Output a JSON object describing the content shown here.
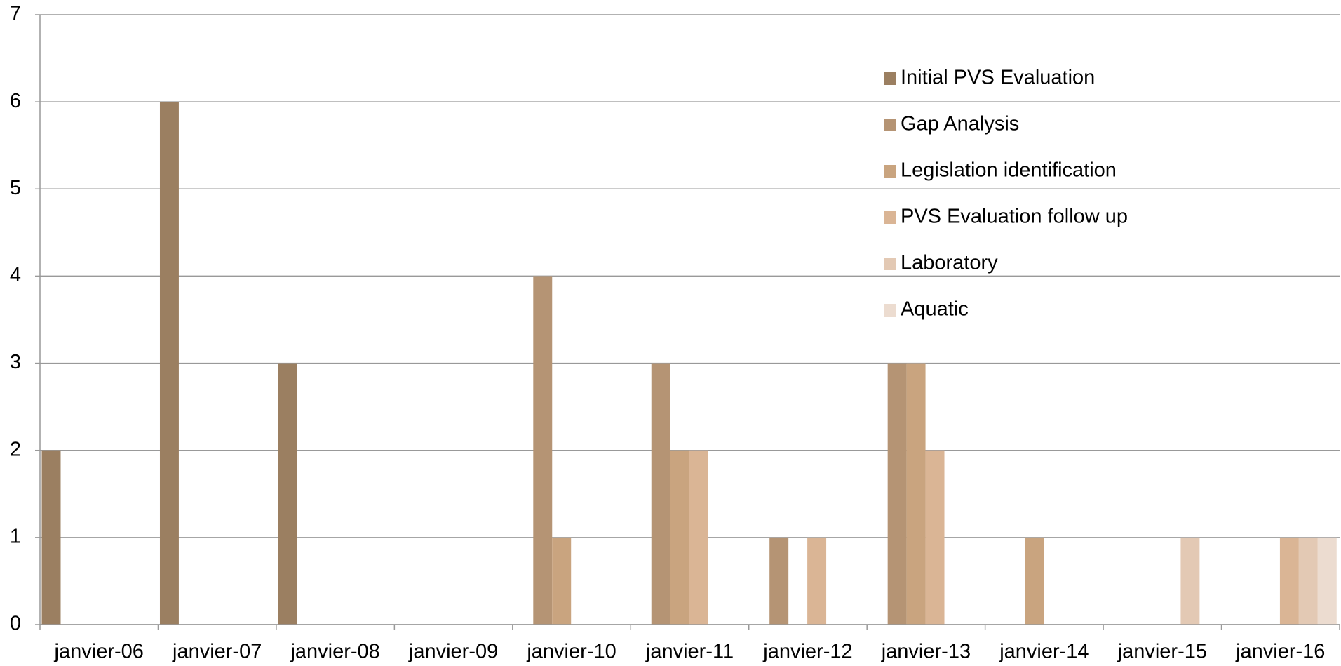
{
  "chart_data": {
    "type": "bar",
    "categories": [
      "janvier-06",
      "janvier-07",
      "janvier-08",
      "janvier-09",
      "janvier-10",
      "janvier-11",
      "janvier-12",
      "janvier-13",
      "janvier-14",
      "janvier-15",
      "janvier-16"
    ],
    "series": [
      {
        "name": "Initial PVS Evaluation",
        "color": "#9b7f61",
        "values": [
          2,
          6,
          3,
          0,
          0,
          0,
          0,
          0,
          0,
          0,
          0
        ]
      },
      {
        "name": "Gap Analysis",
        "color": "#b59474",
        "values": [
          0,
          0,
          0,
          0,
          4,
          3,
          1,
          3,
          0,
          0,
          0
        ]
      },
      {
        "name": "Legislation identification",
        "color": "#c9a47f",
        "values": [
          0,
          0,
          0,
          0,
          1,
          2,
          0,
          3,
          1,
          0,
          0
        ]
      },
      {
        "name": "PVS Evaluation follow up",
        "color": "#dab595",
        "values": [
          0,
          0,
          0,
          0,
          0,
          2,
          1,
          2,
          0,
          0,
          1
        ]
      },
      {
        "name": "Laboratory",
        "color": "#e3c9b4",
        "values": [
          0,
          0,
          0,
          0,
          0,
          0,
          0,
          0,
          0,
          1,
          1
        ]
      },
      {
        "name": "Aquatic",
        "color": "#ecdcd0",
        "values": [
          0,
          0,
          0,
          0,
          0,
          0,
          0,
          0,
          0,
          0,
          1
        ]
      }
    ],
    "ylim": [
      0,
      7
    ],
    "yticks": [
      0,
      1,
      2,
      3,
      4,
      5,
      6,
      7
    ],
    "grid": true
  }
}
